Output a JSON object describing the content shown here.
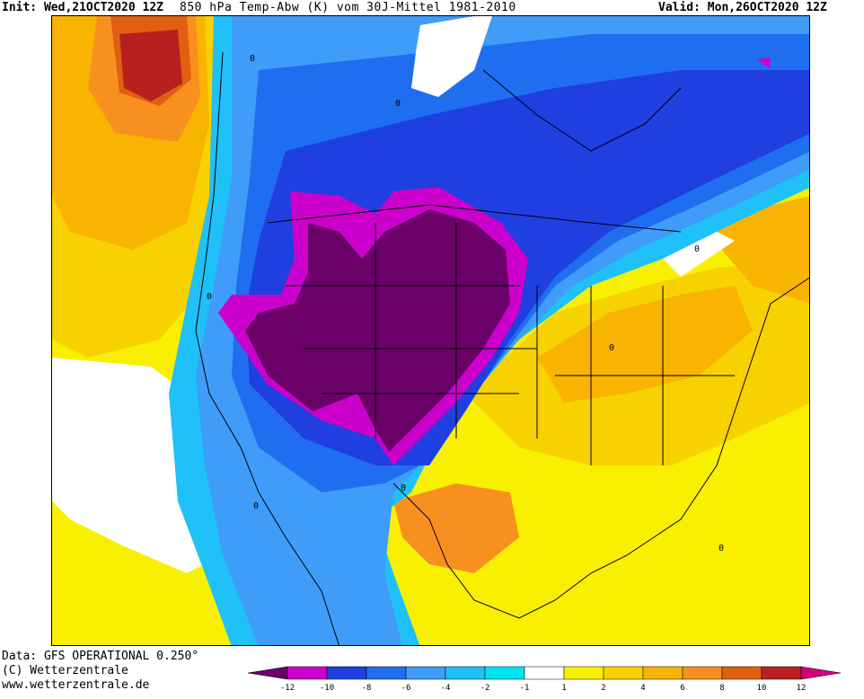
{
  "header": {
    "init": "Init: Wed,21OCT2020 12Z",
    "title": "850 hPa Temp-Abw (K) vom 30J-Mittel 1981-2010",
    "valid": "Valid: Mon,26OCT2020 12Z"
  },
  "footer": {
    "data_source": "Data: GFS OPERATIONAL 0.250°",
    "copyright": "(C) Wetterzentrale",
    "url": "www.wetterzentrale.de"
  },
  "colorbar": {
    "ticks": [
      "-12",
      "-10",
      "-8",
      "-6",
      "-4",
      "-2",
      "-1",
      "1",
      "2",
      "4",
      "6",
      "8",
      "10",
      "12"
    ],
    "colors": [
      "#6a0068",
      "#cc00cc",
      "#1f3fe0",
      "#1f6ef0",
      "#3f9cf8",
      "#20c0f8",
      "#00e4f0",
      "#ffffff",
      "#f8f000",
      "#f8d200",
      "#f8b400",
      "#f89020",
      "#e06010",
      "#b82020",
      "#d00080"
    ]
  },
  "map": {
    "contour_labels": [
      "0",
      "0",
      "0",
      "0",
      "0",
      "0",
      "0",
      "0"
    ],
    "region_colors": {
      "deep_cold": "#6a0068",
      "cold_magenta": "#cc00cc",
      "cold_blue": "#1f3fe0",
      "mid_blue": "#1f6ef0",
      "light_blue": "#3f9cf8",
      "cyan": "#20c0f8",
      "neutral": "#ffffff",
      "warm_yellow": "#f8f000",
      "warm_amber": "#f8d200",
      "warm_orange": "#f8b400",
      "hot_orange": "#f89020",
      "hot_red": "#e06010",
      "very_hot": "#b82020"
    }
  }
}
